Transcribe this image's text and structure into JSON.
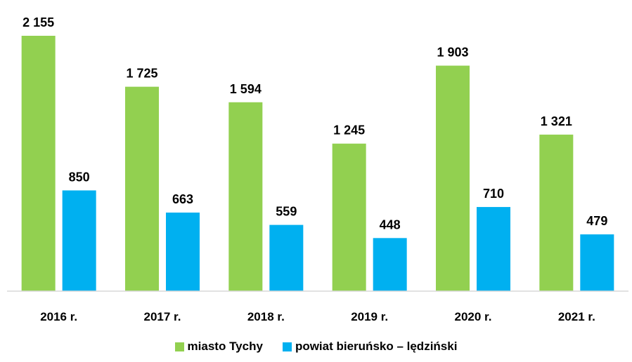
{
  "chart_data": {
    "type": "bar",
    "categories": [
      "2016 r.",
      "2017 r.",
      "2018 r.",
      "2019 r.",
      "2020 r.",
      "2021 r."
    ],
    "series": [
      {
        "name": "miasto Tychy",
        "color": "#92d050",
        "values": [
          2155,
          1725,
          1594,
          1245,
          1903,
          1321
        ],
        "labels": [
          "2 155",
          "1 725",
          "1 594",
          "1 245",
          "1 903",
          "1 321"
        ]
      },
      {
        "name": "powiat bieruńsko – lędziński",
        "color": "#00b0f0",
        "values": [
          850,
          663,
          559,
          448,
          710,
          479
        ],
        "labels": [
          "850",
          "663",
          "559",
          "448",
          "710",
          "479"
        ]
      }
    ],
    "title": "",
    "xlabel": "",
    "ylabel": "",
    "ylim": [
      0,
      2400
    ],
    "grid": false,
    "legend_position": "bottom",
    "axis_color": "#d9d9d9"
  }
}
